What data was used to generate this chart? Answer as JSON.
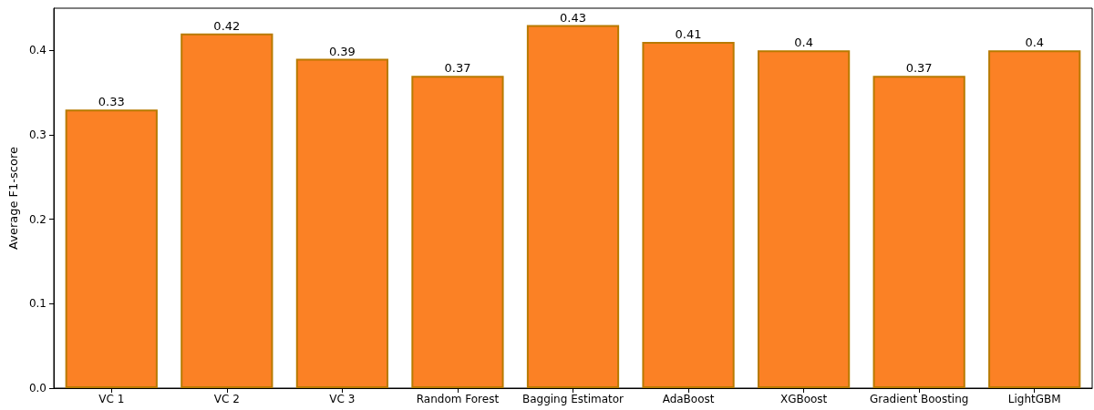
{
  "chart_data": {
    "type": "bar",
    "ylabel": "Average F1-score",
    "categories": [
      "VC 1",
      "VC 2",
      "VC 3",
      "Random Forest",
      "Bagging Estimator",
      "AdaBoost",
      "XGBoost",
      "Gradient Boosting",
      "LightGBM"
    ],
    "values": [
      0.33,
      0.42,
      0.39,
      0.37,
      0.43,
      0.41,
      0.4,
      0.37,
      0.4
    ],
    "color": "#fb8125",
    "ylim": [
      0,
      0.45
    ],
    "yticks": [
      {
        "value": 0,
        "label": "0.0"
      },
      0.1,
      0.2,
      0.3,
      0.4
    ],
    "data_labels": true,
    "grid": false
  }
}
